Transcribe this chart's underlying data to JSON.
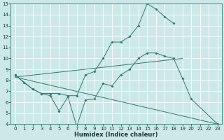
{
  "xlabel": "Humidex (Indice chaleur)",
  "bg_color": "#cce8e8",
  "line_color": "#2e7d6e",
  "grid_color": "#ffffff",
  "xlim": [
    -0.5,
    23.5
  ],
  "ylim": [
    4,
    15
  ],
  "xticks": [
    0,
    1,
    2,
    3,
    4,
    5,
    6,
    7,
    8,
    9,
    10,
    11,
    12,
    13,
    14,
    15,
    16,
    17,
    18,
    19,
    20,
    21,
    22,
    23
  ],
  "yticks": [
    4,
    5,
    6,
    7,
    8,
    9,
    10,
    11,
    12,
    13,
    14,
    15
  ],
  "line1_x": [
    0,
    1,
    2,
    3,
    4,
    5,
    6,
    7,
    8,
    9,
    10,
    11,
    12,
    13,
    14,
    15,
    16,
    17,
    18,
    19,
    20,
    23
  ],
  "line1_y": [
    8.5,
    7.8,
    7.2,
    6.8,
    6.6,
    5.2,
    6.5,
    3.8,
    6.2,
    6.3,
    7.7,
    7.5,
    8.5,
    9.0,
    10.0,
    10.5,
    10.5,
    10.2,
    10.0,
    8.2,
    6.3,
    4.0
  ],
  "line2_x": [
    0,
    2,
    3,
    4,
    5,
    6,
    7,
    8,
    9,
    10,
    11,
    12,
    13,
    14,
    15,
    16,
    17,
    18
  ],
  "line2_y": [
    8.5,
    7.2,
    6.8,
    6.8,
    6.8,
    6.6,
    6.6,
    8.5,
    8.8,
    10.0,
    11.5,
    11.5,
    12.0,
    13.0,
    15.0,
    14.5,
    13.8,
    13.2
  ],
  "line3_x": [
    0,
    23
  ],
  "line3_y": [
    8.3,
    4.0
  ],
  "line4_x": [
    0,
    19
  ],
  "line4_y": [
    8.3,
    10.0
  ],
  "tick_fontsize": 5.0,
  "xlabel_fontsize": 6.0
}
